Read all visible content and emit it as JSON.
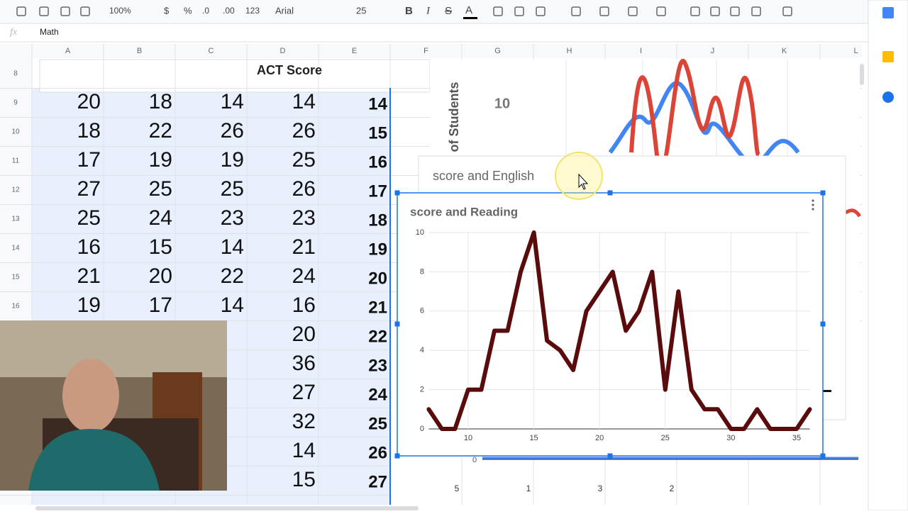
{
  "toolbar": {
    "zoom": "100%",
    "currency": "$",
    "percent": "%",
    "dec_less": ".0",
    "dec_more": ".00",
    "format": "123",
    "font": "Arial",
    "font_size": "25",
    "bold": "B",
    "italic": "I",
    "strike": "S",
    "text_color": "A"
  },
  "formula_bar": {
    "fx": "fx",
    "content": "Math"
  },
  "column_headers": [
    "A",
    "B",
    "C",
    "D",
    "E",
    "F",
    "G",
    "H",
    "I",
    "J",
    "K",
    "L"
  ],
  "row_numbers": [
    "8",
    "9",
    "10",
    "11",
    "12",
    "13",
    "14",
    "15",
    "16"
  ],
  "sheet": {
    "header": "ACT Score",
    "rows": [
      [
        "20",
        "18",
        "14",
        "14",
        "14"
      ],
      [
        "18",
        "22",
        "26",
        "26",
        "15"
      ],
      [
        "17",
        "19",
        "19",
        "25",
        "16"
      ],
      [
        "27",
        "25",
        "25",
        "26",
        "17"
      ],
      [
        "25",
        "24",
        "23",
        "23",
        "18"
      ],
      [
        "16",
        "15",
        "14",
        "21",
        "19"
      ],
      [
        "21",
        "20",
        "22",
        "24",
        "20"
      ],
      [
        "19",
        "17",
        "14",
        "16",
        "21"
      ],
      [
        null,
        null,
        null,
        "20",
        "22"
      ],
      [
        null,
        null,
        null,
        "36",
        "23"
      ],
      [
        null,
        null,
        null,
        "27",
        "24"
      ],
      [
        null,
        null,
        null,
        "32",
        "25"
      ],
      [
        null,
        null,
        null,
        "14",
        "26"
      ],
      [
        null,
        null,
        null,
        "15",
        "27"
      ]
    ]
  },
  "back_chart": {
    "y_axis_label": "of Students",
    "ytick": "10"
  },
  "english_chart": {
    "title": "score and English"
  },
  "reading_chart": {
    "type": "line",
    "title": "score and Reading",
    "color": "#5a0c0c",
    "x": [
      7,
      8,
      9,
      10,
      11,
      12,
      13,
      14,
      15,
      16,
      17,
      18,
      19,
      20,
      21,
      22,
      23,
      24,
      25,
      26,
      27,
      28,
      29,
      30,
      31,
      32,
      33,
      34,
      35,
      36
    ],
    "values": [
      1,
      0,
      0,
      2,
      2,
      5,
      5,
      8,
      10,
      4.5,
      4,
      3,
      6,
      7,
      8,
      5,
      6,
      8,
      2,
      7,
      2,
      1,
      1,
      0,
      0,
      1,
      0,
      0,
      0,
      1
    ],
    "xlim": [
      7,
      36
    ],
    "ylim": [
      0,
      10
    ],
    "xticks": [
      10,
      15,
      20,
      25,
      30,
      35
    ],
    "yticks": [
      0,
      2,
      4,
      6,
      8,
      10
    ],
    "grid": true
  },
  "bottom_chart": {
    "ytick": "0",
    "labels": [
      "5",
      "1",
      "3",
      "2"
    ]
  }
}
